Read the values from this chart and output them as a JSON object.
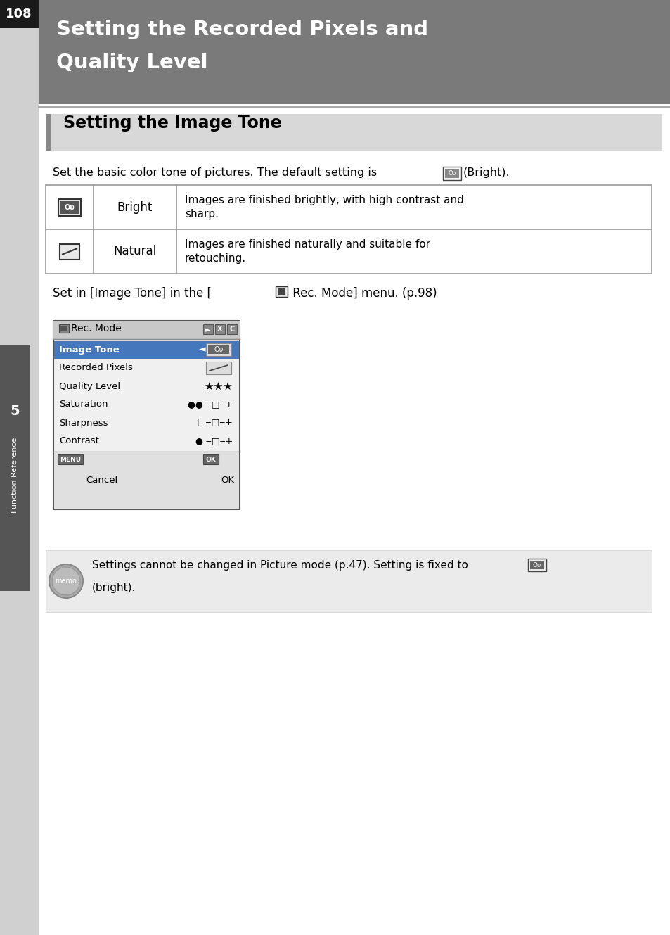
{
  "page_number": "108",
  "chapter_number": "5",
  "chapter_label": "Function Reference",
  "header_title_line1": "Setting the Recorded Pixels and",
  "header_title_line2": "Quality Level",
  "header_bg": "#7a7a7a",
  "header_text_color": "#ffffff",
  "section_title": "Setting the Image Tone",
  "section_bg": "#d8d8d8",
  "body_bg": "#ffffff",
  "intro_line1": "Set the basic color tone of pictures. The default setting is",
  "intro_line2": "(Bright).",
  "table_rows": [
    {
      "label": "Bright",
      "description_line1": "Images are finished brightly, with high contrast and",
      "description_line2": "sharp."
    },
    {
      "label": "Natural",
      "description_line1": "Images are finished naturally and suitable for",
      "description_line2": "retouching."
    }
  ],
  "menu_intro_pre": "Set in [Image Tone] in the [",
  "menu_intro_post": " Rec. Mode] menu. (p.98)",
  "menu_title": "Rec. Mode",
  "menu_items": [
    {
      "label": "Image Tone",
      "highlighted": true
    },
    {
      "label": "Recorded Pixels",
      "highlighted": false
    },
    {
      "label": "Quality Level",
      "highlighted": false
    },
    {
      "label": "Saturation",
      "highlighted": false
    },
    {
      "label": "Sharpness",
      "highlighted": false
    },
    {
      "label": "Contrast",
      "highlighted": false
    }
  ],
  "memo_line1": "Settings cannot be changed in Picture mode (p.47). Setting is fixed to",
  "memo_line2": "(bright).",
  "memo_bg": "#ebebeb",
  "left_sidebar_bg": "#d0d0d0",
  "left_tab_bg": "#555555",
  "page_number_bg": "#1a1a1a",
  "page_number_color": "#ffffff",
  "highlight_blue": "#4477bb",
  "table_border": "#999999",
  "menu_border": "#666666"
}
